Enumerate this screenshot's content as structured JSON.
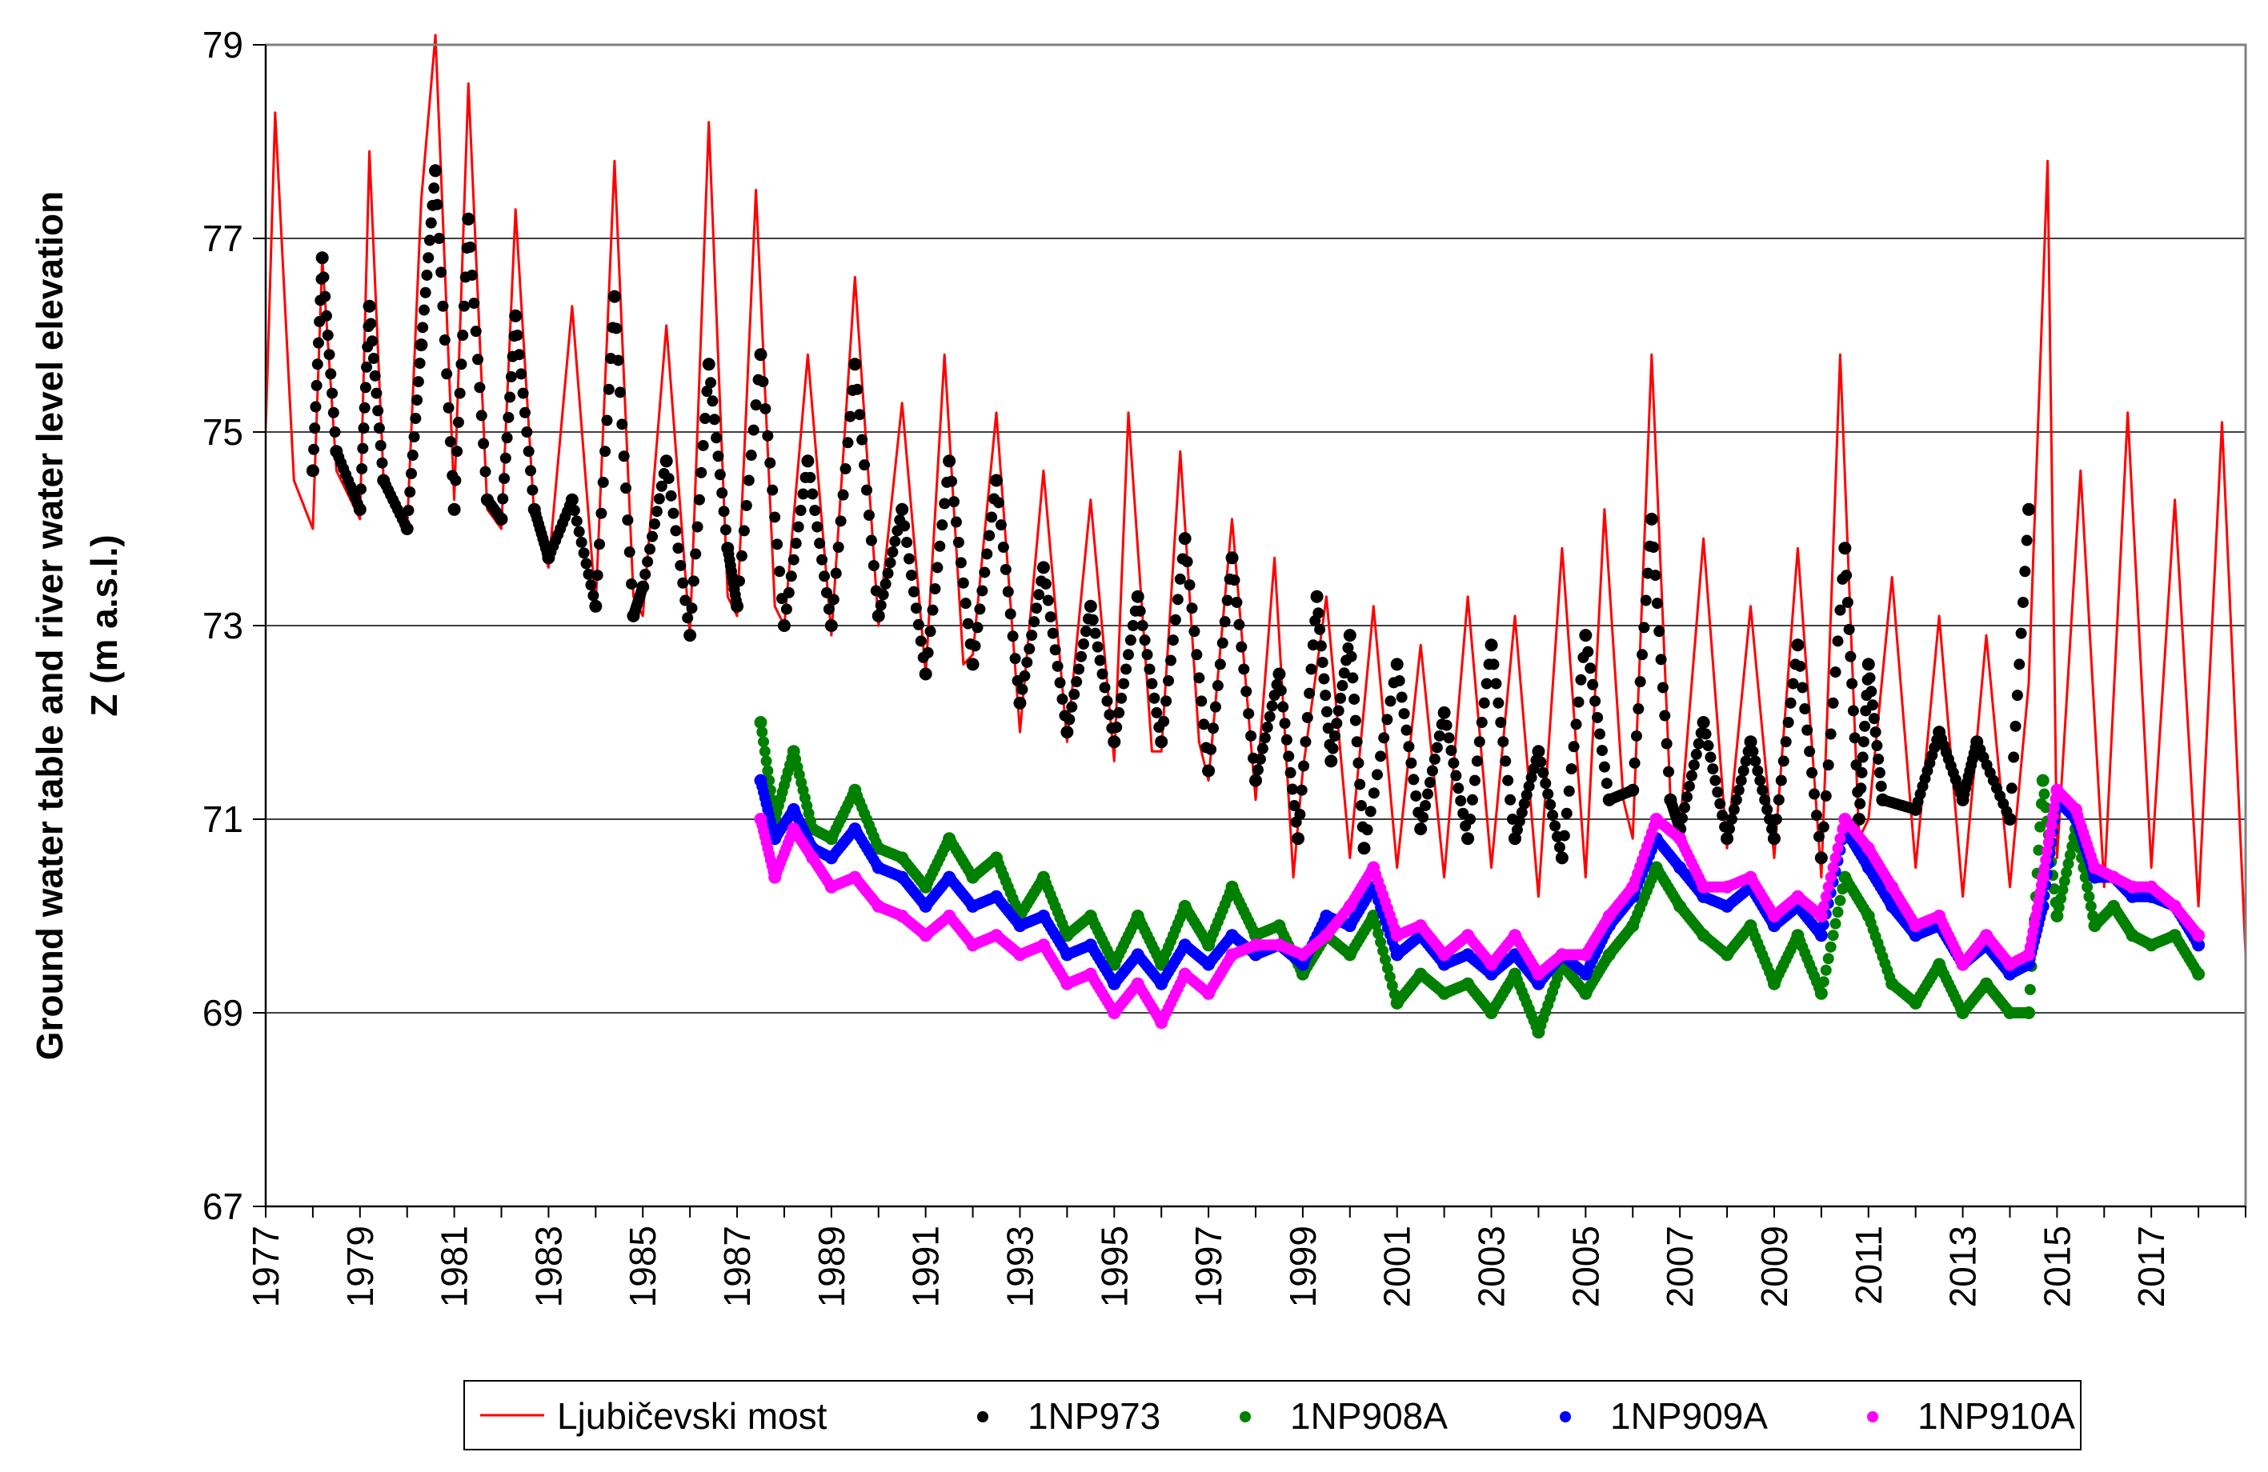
{
  "chart_data": {
    "type": "line",
    "title": "",
    "xlabel": "",
    "ylabel_line1": "Ground water table and river water level elevation",
    "ylabel_line2": "Z (m a.s.l.)",
    "xlim": [
      1977,
      2019
    ],
    "ylim": [
      67,
      79
    ],
    "x_ticks": [
      1977,
      1979,
      1981,
      1983,
      1985,
      1987,
      1989,
      1991,
      1993,
      1995,
      1997,
      1999,
      2001,
      2003,
      2005,
      2007,
      2009,
      2011,
      2013,
      2015,
      2017
    ],
    "y_ticks": [
      67,
      69,
      71,
      73,
      75,
      77,
      79
    ],
    "grid": "horizontal",
    "legend_position": "bottom",
    "series": [
      {
        "name": "Ljubičevski most",
        "style": "line",
        "color": "#ff0000",
        "x": [
          1977.0,
          1977.2,
          1977.6,
          1978.0,
          1978.2,
          1978.5,
          1979.0,
          1979.2,
          1979.5,
          1980.0,
          1980.3,
          1980.6,
          1981.0,
          1981.3,
          1981.7,
          1982.0,
          1982.3,
          1982.7,
          1983.0,
          1983.5,
          1984.0,
          1984.4,
          1984.8,
          1985.0,
          1985.5,
          1986.0,
          1986.4,
          1986.8,
          1987.0,
          1987.4,
          1987.8,
          1988.0,
          1988.5,
          1989.0,
          1989.5,
          1990.0,
          1990.5,
          1991.0,
          1991.4,
          1991.8,
          1992.0,
          1992.5,
          1993.0,
          1993.5,
          1994.0,
          1994.5,
          1995.0,
          1995.3,
          1995.8,
          1996.0,
          1996.4,
          1996.8,
          1997.0,
          1997.5,
          1998.0,
          1998.4,
          1998.8,
          1999.0,
          1999.5,
          2000.0,
          2000.5,
          2001.0,
          2001.5,
          2002.0,
          2002.5,
          2003.0,
          2003.5,
          2004.0,
          2004.5,
          2005.0,
          2005.4,
          2005.8,
          2006.0,
          2006.4,
          2006.8,
          2007.0,
          2007.5,
          2008.0,
          2008.5,
          2009.0,
          2009.5,
          2010.0,
          2010.4,
          2010.8,
          2011.0,
          2011.5,
          2012.0,
          2012.5,
          2013.0,
          2013.5,
          2014.0,
          2014.4,
          2014.8,
          2015.0,
          2015.5,
          2016.0,
          2016.5,
          2017.0,
          2017.5,
          2018.0,
          2018.5,
          2019.0
        ],
        "y": [
          75.0,
          78.3,
          74.5,
          74.0,
          76.8,
          74.6,
          74.1,
          77.9,
          74.5,
          74.0,
          77.4,
          79.1,
          74.3,
          78.6,
          74.2,
          74.0,
          77.3,
          74.1,
          73.6,
          76.3,
          73.2,
          77.8,
          73.3,
          73.1,
          76.1,
          72.9,
          78.2,
          73.3,
          73.1,
          77.5,
          73.2,
          73.0,
          75.8,
          72.9,
          76.6,
          73.0,
          75.3,
          72.5,
          75.8,
          72.6,
          72.7,
          75.2,
          71.9,
          74.6,
          71.8,
          74.3,
          71.6,
          75.2,
          71.7,
          71.7,
          74.8,
          71.8,
          71.4,
          74.1,
          71.2,
          73.7,
          70.4,
          71.5,
          73.3,
          70.6,
          73.2,
          70.5,
          72.8,
          70.4,
          73.3,
          70.5,
          73.1,
          70.2,
          73.8,
          70.4,
          74.2,
          71.2,
          70.8,
          75.8,
          71.2,
          70.9,
          73.9,
          70.7,
          73.2,
          70.6,
          73.8,
          70.4,
          75.8,
          70.8,
          71.0,
          73.5,
          70.5,
          73.1,
          70.2,
          72.9,
          70.3,
          72.4,
          77.8,
          70.6,
          74.6,
          70.3,
          75.2,
          70.5,
          74.3,
          70.1,
          75.1,
          69.6
        ]
      },
      {
        "name": "1NP973",
        "style": "points",
        "color": "#000000",
        "x": [
          1978.0,
          1978.2,
          1978.5,
          1979.0,
          1979.2,
          1979.5,
          1980.0,
          1980.3,
          1980.6,
          1981.0,
          1981.3,
          1981.7,
          1982.0,
          1982.3,
          1982.7,
          1983.0,
          1983.5,
          1984.0,
          1984.4,
          1984.8,
          1985.0,
          1985.5,
          1986.0,
          1986.4,
          1986.8,
          1987.0,
          1987.5,
          1988.0,
          1988.5,
          1989.0,
          1989.5,
          1990.0,
          1990.5,
          1991.0,
          1991.5,
          1992.0,
          1992.5,
          1993.0,
          1993.5,
          1994.0,
          1994.5,
          1995.0,
          1995.5,
          1996.0,
          1996.5,
          1997.0,
          1997.5,
          1998.0,
          1998.5,
          1998.9,
          1999.3,
          1999.6,
          2000.0,
          2000.3,
          2001.0,
          2001.5,
          2002.0,
          2002.5,
          2003.0,
          2003.5,
          2004.0,
          2004.5,
          2005.0,
          2005.5,
          2006.0,
          2006.4,
          2006.8,
          2007.0,
          2007.5,
          2008.0,
          2008.5,
          2009.0,
          2009.5,
          2010.0,
          2010.5,
          2010.8,
          2011.0,
          2011.3,
          2012.0,
          2012.5,
          2013.0,
          2013.3,
          2014.0,
          2014.4
        ],
        "y": [
          74.6,
          76.8,
          74.8,
          74.2,
          76.3,
          74.5,
          74.0,
          75.9,
          77.7,
          74.2,
          77.2,
          74.3,
          74.1,
          76.2,
          74.2,
          73.7,
          74.3,
          73.2,
          76.4,
          73.1,
          73.4,
          74.7,
          72.9,
          75.7,
          73.8,
          73.2,
          75.8,
          73.0,
          74.7,
          73.0,
          75.7,
          73.1,
          74.2,
          72.5,
          74.7,
          72.6,
          74.5,
          72.2,
          73.6,
          71.9,
          73.2,
          71.8,
          73.3,
          71.8,
          73.9,
          71.5,
          73.7,
          71.4,
          72.5,
          70.8,
          73.3,
          71.6,
          72.9,
          70.7,
          72.6,
          70.9,
          72.1,
          70.8,
          72.8,
          70.8,
          71.7,
          70.6,
          72.9,
          71.2,
          71.3,
          74.1,
          71.2,
          70.9,
          72.0,
          70.8,
          71.8,
          70.8,
          72.8,
          70.6,
          73.8,
          71.0,
          72.6,
          71.2,
          71.1,
          71.9,
          71.2,
          71.8,
          71.0,
          74.2
        ]
      },
      {
        "name": "1NP908A",
        "style": "points",
        "color": "#008000",
        "x": [
          1987.5,
          1987.8,
          1988.2,
          1988.6,
          1989.0,
          1989.5,
          1990.0,
          1990.5,
          1991.0,
          1991.5,
          1992.0,
          1992.5,
          1993.0,
          1993.5,
          1994.0,
          1994.5,
          1995.0,
          1995.5,
          1996.0,
          1996.5,
          1997.0,
          1997.5,
          1998.0,
          1998.5,
          1999.0,
          1999.5,
          2000.0,
          2000.5,
          2001.0,
          2001.5,
          2002.0,
          2002.5,
          2003.0,
          2003.5,
          2004.0,
          2004.5,
          2005.0,
          2005.5,
          2006.0,
          2006.5,
          2007.0,
          2007.5,
          2008.0,
          2008.5,
          2009.0,
          2009.5,
          2010.0,
          2010.5,
          2011.0,
          2011.5,
          2012.0,
          2012.5,
          2013.0,
          2013.5,
          2014.0,
          2014.4,
          2014.7,
          2015.0,
          2015.4,
          2015.8,
          2016.2,
          2016.6,
          2017.0,
          2017.5,
          2018.0
        ],
        "y": [
          72.0,
          71.0,
          71.7,
          70.9,
          70.8,
          71.3,
          70.7,
          70.6,
          70.3,
          70.8,
          70.4,
          70.6,
          70.0,
          70.4,
          69.8,
          70.0,
          69.5,
          70.0,
          69.5,
          70.1,
          69.7,
          70.3,
          69.8,
          69.9,
          69.4,
          69.8,
          69.6,
          70.0,
          69.1,
          69.4,
          69.2,
          69.3,
          69.0,
          69.4,
          68.8,
          69.5,
          69.2,
          69.6,
          69.9,
          70.5,
          70.1,
          69.8,
          69.6,
          69.9,
          69.3,
          69.8,
          69.2,
          70.4,
          70.0,
          69.3,
          69.1,
          69.5,
          69.0,
          69.3,
          69.0,
          69.0,
          71.4,
          70.0,
          70.9,
          69.9,
          70.1,
          69.8,
          69.7,
          69.8,
          69.4
        ]
      },
      {
        "name": "1NP909A",
        "style": "points",
        "color": "#0000ff",
        "x": [
          1987.5,
          1987.8,
          1988.2,
          1988.6,
          1989.0,
          1989.5,
          1990.0,
          1990.5,
          1991.0,
          1991.5,
          1992.0,
          1992.5,
          1993.0,
          1993.5,
          1994.0,
          1994.5,
          1995.0,
          1995.5,
          1996.0,
          1996.5,
          1997.0,
          1997.5,
          1998.0,
          1998.5,
          1999.0,
          1999.5,
          2000.0,
          2000.5,
          2001.0,
          2001.5,
          2002.0,
          2002.5,
          2003.0,
          2003.5,
          2004.0,
          2004.5,
          2005.0,
          2005.5,
          2006.0,
          2006.5,
          2007.0,
          2007.5,
          2008.0,
          2008.5,
          2009.0,
          2009.5,
          2010.0,
          2010.5,
          2011.0,
          2011.5,
          2012.0,
          2012.5,
          2013.0,
          2013.5,
          2014.0,
          2014.4,
          2014.7,
          2015.0,
          2015.4,
          2015.8,
          2016.2,
          2016.6,
          2017.0,
          2017.5,
          2018.0
        ],
        "y": [
          71.4,
          70.8,
          71.1,
          70.7,
          70.6,
          70.9,
          70.5,
          70.4,
          70.1,
          70.4,
          70.1,
          70.2,
          69.9,
          70.0,
          69.6,
          69.7,
          69.3,
          69.6,
          69.3,
          69.7,
          69.5,
          69.8,
          69.6,
          69.7,
          69.5,
          70.0,
          69.9,
          70.3,
          69.6,
          69.8,
          69.5,
          69.6,
          69.4,
          69.6,
          69.3,
          69.6,
          69.4,
          69.9,
          70.2,
          70.8,
          70.5,
          70.2,
          70.1,
          70.3,
          69.9,
          70.1,
          69.8,
          70.9,
          70.5,
          70.1,
          69.8,
          69.9,
          69.5,
          69.7,
          69.4,
          69.5,
          70.1,
          71.2,
          71.0,
          70.4,
          70.4,
          70.2,
          70.2,
          70.1,
          69.7
        ]
      },
      {
        "name": "1NP910A",
        "style": "points",
        "color": "#ff00ff",
        "x": [
          1987.5,
          1987.8,
          1988.2,
          1988.6,
          1989.0,
          1989.5,
          1990.0,
          1990.5,
          1991.0,
          1991.5,
          1992.0,
          1992.5,
          1993.0,
          1993.5,
          1994.0,
          1994.5,
          1995.0,
          1995.5,
          1996.0,
          1996.5,
          1997.0,
          1997.5,
          1998.0,
          1998.5,
          1999.0,
          1999.5,
          2000.0,
          2000.5,
          2001.0,
          2001.5,
          2002.0,
          2002.5,
          2003.0,
          2003.5,
          2004.0,
          2004.5,
          2005.0,
          2005.5,
          2006.0,
          2006.5,
          2007.0,
          2007.5,
          2008.0,
          2008.5,
          2009.0,
          2009.5,
          2010.0,
          2010.5,
          2011.0,
          2011.5,
          2012.0,
          2012.5,
          2013.0,
          2013.5,
          2014.0,
          2014.4,
          2014.7,
          2015.0,
          2015.4,
          2015.8,
          2016.2,
          2016.6,
          2017.0,
          2017.5,
          2018.0
        ],
        "y": [
          71.0,
          70.4,
          70.9,
          70.6,
          70.3,
          70.4,
          70.1,
          70.0,
          69.8,
          70.0,
          69.7,
          69.8,
          69.6,
          69.7,
          69.3,
          69.4,
          69.0,
          69.3,
          68.9,
          69.4,
          69.2,
          69.6,
          69.7,
          69.7,
          69.6,
          69.8,
          70.1,
          70.5,
          69.8,
          69.9,
          69.6,
          69.8,
          69.5,
          69.8,
          69.4,
          69.6,
          69.6,
          70.0,
          70.3,
          71.0,
          70.8,
          70.3,
          70.3,
          70.4,
          70.0,
          70.2,
          70.0,
          71.0,
          70.7,
          70.3,
          69.9,
          70.0,
          69.5,
          69.8,
          69.5,
          69.6,
          70.4,
          71.3,
          71.1,
          70.5,
          70.4,
          70.3,
          70.3,
          70.1,
          69.8
        ]
      }
    ]
  }
}
